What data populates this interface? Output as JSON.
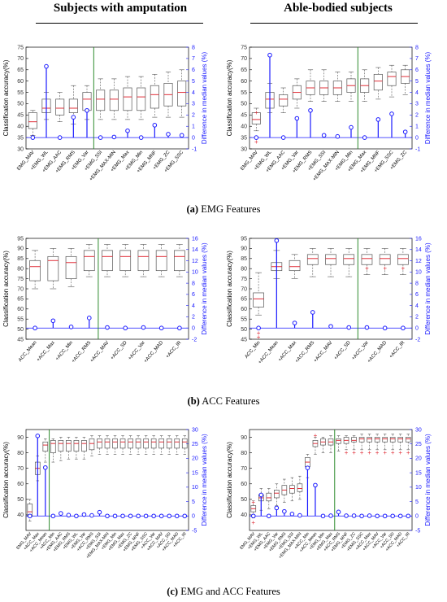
{
  "headers": {
    "left": "Subjects with amputation",
    "right": "Able-bodied subjects"
  },
  "captions": [
    {
      "letter": "(a)",
      "text": "EMG Features"
    },
    {
      "letter": "(b)",
      "text": "ACC Features"
    },
    {
      "letter": "(c)",
      "text": "EMG and ACC Features"
    }
  ],
  "colors": {
    "box": "#555555",
    "median": "#e0303a",
    "whisker": "#555555",
    "diff": "#1a1aff",
    "divider": "#2e8b2e"
  },
  "chart_data": [
    {
      "type": "box",
      "ylabel": "Classification accuracy(%)",
      "y2label": "Difference in median values (%)",
      "ylim": [
        30,
        75
      ],
      "yticks": [
        30,
        35,
        40,
        45,
        50,
        55,
        60,
        65,
        70,
        75
      ],
      "y2lim": [
        -1,
        8
      ],
      "y2ticks": [
        -1,
        0,
        1,
        2,
        3,
        4,
        5,
        6,
        7,
        8
      ],
      "divider_after": 4,
      "categories": [
        "EMG_MAV",
        "+EMG_WL",
        "+EMG_AAC",
        "+EMG_RMS",
        "+EMG_Var",
        "+EMG_SSI",
        "+EMG_MAX-MIN",
        "+EMG_Max",
        "+EMG_Min",
        "+EMG_MNF",
        "+EMG_ZC",
        "+EMG_SSC"
      ],
      "boxes": [
        [
          36,
          39,
          42,
          46,
          47
        ],
        [
          43,
          46,
          48,
          52,
          55
        ],
        [
          42,
          45,
          48,
          52,
          55
        ],
        [
          41,
          46,
          48,
          52,
          58
        ],
        [
          43,
          47,
          52,
          55,
          58
        ],
        [
          43,
          47,
          52,
          56,
          61
        ],
        [
          43,
          47,
          52,
          56,
          61
        ],
        [
          43,
          47,
          53,
          57,
          62
        ],
        [
          43,
          47,
          53,
          57,
          62
        ],
        [
          44,
          48,
          54,
          58,
          63
        ],
        [
          44,
          49,
          54,
          59,
          64
        ],
        [
          44,
          49,
          55,
          60,
          65
        ]
      ],
      "outliers": [],
      "diff": [
        0,
        6.3,
        0,
        1.8,
        2.4,
        0,
        0.05,
        0.6,
        0,
        1.1,
        0.3,
        0.2
      ]
    },
    {
      "type": "box",
      "ylabel": "Classification accuracy(%)",
      "y2label": "Difference in median values (%)",
      "ylim": [
        30,
        75
      ],
      "yticks": [
        30,
        35,
        40,
        45,
        50,
        55,
        60,
        65,
        70,
        75
      ],
      "y2lim": [
        -1,
        8
      ],
      "y2ticks": [
        -1,
        0,
        1,
        2,
        3,
        4,
        5,
        6,
        7,
        8
      ],
      "divider_after": 7,
      "categories": [
        "EMG_MAV",
        "+EMG_WL",
        "+EMG_AAC",
        "+EMG_Var",
        "+EMG_RMS",
        "+EMG_SSI",
        "+EMG_MAX-MIN",
        "+EMG_Min",
        "+EMG_Max",
        "+EMG_MNF",
        "+EMG_SSC",
        "+EMG_ZC"
      ],
      "boxes": [
        [
          38,
          41,
          43,
          46,
          48
        ],
        [
          46,
          48,
          52,
          55,
          59
        ],
        [
          46,
          49,
          52,
          54,
          57
        ],
        [
          48,
          52,
          55,
          58,
          61
        ],
        [
          51,
          54,
          57,
          60,
          65
        ],
        [
          51,
          54,
          57,
          60,
          65
        ],
        [
          51,
          54,
          57,
          60,
          64
        ],
        [
          51,
          55,
          58,
          61,
          64
        ],
        [
          51,
          55,
          58,
          61,
          65
        ],
        [
          52,
          56,
          60,
          63,
          66
        ],
        [
          53,
          58,
          62,
          64,
          67
        ],
        [
          54,
          59,
          62,
          65,
          67
        ]
      ],
      "outliers": [
        [
          0,
          46
        ],
        [
          0,
          33
        ]
      ],
      "diff": [
        0,
        7.3,
        0,
        1.7,
        2.4,
        0.2,
        0.1,
        0.9,
        0,
        1.6,
        2.1,
        0.5
      ]
    },
    {
      "type": "box",
      "ylabel": "Classification accuracy(%)",
      "y2label": "Difference in median values (%)",
      "ylim": [
        45,
        95
      ],
      "yticks": [
        45,
        50,
        55,
        60,
        65,
        70,
        75,
        80,
        85,
        90,
        95
      ],
      "y2lim": [
        -2,
        16
      ],
      "y2ticks": [
        -2,
        0,
        2,
        4,
        6,
        8,
        10,
        12,
        14,
        16
      ],
      "divider_after": 3,
      "categories": [
        "ACC_Mean",
        "+ACC_Max",
        "+ACC_Min",
        "+ACC_RMS",
        "+ACC_MAV",
        "+ACC_SD",
        "+ACC_Var",
        "+ACC_MAD",
        "+ACC_IR"
      ],
      "boxes": [
        [
          70,
          74,
          81,
          84,
          89
        ],
        [
          70,
          74,
          84,
          86,
          90
        ],
        [
          71,
          75,
          83,
          86,
          90
        ],
        [
          76,
          79,
          86,
          89,
          92
        ],
        [
          76,
          79,
          86,
          89,
          92
        ],
        [
          76,
          79,
          86,
          89,
          92
        ],
        [
          76,
          79,
          86,
          89,
          92
        ],
        [
          76,
          79,
          86,
          89,
          92
        ],
        [
          76,
          79,
          86,
          89,
          92
        ]
      ],
      "outliers": [],
      "diff": [
        0,
        1.3,
        0.2,
        1.8,
        0.1,
        0,
        0.1,
        0,
        0
      ]
    },
    {
      "type": "box",
      "ylabel": "Classification accuracy(%)",
      "y2label": "Difference in median values (%)",
      "ylim": [
        45,
        95
      ],
      "yticks": [
        45,
        50,
        55,
        60,
        65,
        70,
        75,
        80,
        85,
        90,
        95
      ],
      "y2lim": [
        -2,
        16
      ],
      "y2ticks": [
        -2,
        0,
        2,
        4,
        6,
        8,
        10,
        12,
        14,
        16
      ],
      "divider_after": 5,
      "categories": [
        "ACC_Min",
        "+ACC_Mean",
        "+ACC_Max",
        "+ACC_RMS",
        "+ACC_MAV",
        "+ACC_SD",
        "+ACC_Var",
        "+ACC_MAD",
        "+ACC_IR"
      ],
      "boxes": [
        [
          57,
          61,
          65,
          68,
          78
        ],
        [
          75,
          79,
          81,
          83,
          89
        ],
        [
          75,
          79,
          81,
          84,
          87
        ],
        [
          76,
          82,
          85,
          87,
          90
        ],
        [
          76,
          82,
          85,
          87,
          90
        ],
        [
          76,
          82,
          85,
          87,
          90
        ],
        [
          77,
          82,
          85,
          87,
          90
        ],
        [
          77,
          82,
          85,
          87,
          90
        ],
        [
          77,
          82,
          85,
          87,
          90
        ]
      ],
      "outliers": [
        [
          0,
          48
        ],
        [
          0,
          46
        ],
        [
          6,
          80
        ],
        [
          7,
          80
        ],
        [
          8,
          80
        ]
      ],
      "diff": [
        0,
        15.6,
        0.9,
        2.8,
        0.3,
        0.1,
        0.1,
        0,
        0
      ]
    },
    {
      "type": "box",
      "ylabel": "Classification accuracy(%)",
      "y2label": "Difference in median values (%)",
      "ylim": [
        30,
        95
      ],
      "yticks": [
        40,
        50,
        60,
        70,
        80,
        90
      ],
      "y2lim": [
        -5,
        30
      ],
      "y2ticks": [
        -5,
        0,
        5,
        10,
        15,
        20,
        25,
        30
      ],
      "divider_after": 2,
      "categories": [
        "EMG_MAV",
        "+ACC_Max",
        "+ACC_Mean",
        "+ACC_Min",
        "+EMG_AAC",
        "+EMG_RMS",
        "+EMG_WL",
        "+EMG_Var",
        "+ACC_RMS",
        "+EMG_SSI",
        "+EMG_MAX-MIN",
        "+EMG_Min",
        "+EMG_Max",
        "+EMG_ZC",
        "+EMG_MNF",
        "+EMG_SSC",
        "+ACC_Var",
        "+ACC_MAV",
        "+ACC_SD",
        "+ACC_MAD",
        "+ACC_IR"
      ],
      "boxes": [
        [
          36,
          39,
          42,
          47,
          50
        ],
        [
          62,
          66,
          70,
          74,
          78
        ],
        [
          74,
          81,
          85,
          87,
          89
        ],
        [
          74,
          80,
          86,
          88,
          89
        ],
        [
          75,
          81,
          86,
          88,
          90
        ],
        [
          76,
          81,
          86,
          88,
          90
        ],
        [
          76,
          81,
          86,
          88,
          90
        ],
        [
          76,
          81,
          86,
          88,
          90
        ],
        [
          78,
          82,
          86,
          89,
          91
        ],
        [
          79,
          83,
          87,
          89,
          91
        ],
        [
          79,
          83,
          87,
          89,
          91
        ],
        [
          79,
          83,
          87,
          89,
          91
        ],
        [
          79,
          83,
          87,
          89,
          91
        ],
        [
          79,
          83,
          87,
          89,
          91
        ],
        [
          79,
          83,
          87,
          89,
          91
        ],
        [
          79,
          83,
          87,
          89,
          91
        ],
        [
          79,
          83,
          87,
          89,
          91
        ],
        [
          79,
          83,
          87,
          89,
          91
        ],
        [
          79,
          83,
          87,
          89,
          91
        ],
        [
          79,
          83,
          87,
          89,
          91
        ],
        [
          79,
          83,
          87,
          89,
          91
        ]
      ],
      "outliers": [],
      "diff": [
        0,
        27.8,
        16.8,
        0,
        0.9,
        0.3,
        0,
        0.5,
        0.2,
        1.3,
        0,
        0,
        0,
        0,
        0,
        0,
        0,
        0,
        0,
        0,
        0
      ]
    },
    {
      "type": "box",
      "ylabel": "Classification accuracy(%)",
      "y2label": "Difference in median values (%)",
      "ylim": [
        30,
        95
      ],
      "yticks": [
        40,
        50,
        60,
        70,
        80,
        90
      ],
      "y2lim": [
        -5,
        30
      ],
      "y2ticks": [
        -5,
        0,
        5,
        10,
        15,
        20,
        25,
        30
      ],
      "divider_after": 10,
      "categories": [
        "EMG_MAV",
        "+EMG_WL",
        "+EMG_AAC",
        "+EMG_Var",
        "+EMG_RMS",
        "+EMG_SSI",
        "+EMG_MAX-MIN",
        "+ACC_Min",
        "+ACC_Mean",
        "+EMG_Min",
        "+EMG_Max",
        "+ACC_RMS",
        "+EMG_MNF",
        "+EMG_ZC",
        "+EMG_SSC",
        "+ACC_Max",
        "+ACC_MAV",
        "+ACC_Var",
        "+ACC_SD",
        "+ACC_MAD",
        "+ACC_IR"
      ],
      "boxes": [
        [
          38,
          42,
          44,
          46,
          49
        ],
        [
          43,
          49,
          51,
          53,
          57
        ],
        [
          44,
          49,
          51,
          54,
          57
        ],
        [
          46,
          51,
          54,
          56,
          60
        ],
        [
          48,
          53,
          56,
          59,
          63
        ],
        [
          49,
          54,
          57,
          59,
          64
        ],
        [
          50,
          55,
          57,
          60,
          65
        ],
        [
          64,
          71,
          74,
          77,
          79
        ],
        [
          79,
          84,
          86,
          88,
          90
        ],
        [
          80,
          85,
          87,
          89,
          90
        ],
        [
          80,
          85,
          87,
          89,
          91
        ],
        [
          81,
          86,
          88,
          89,
          91
        ],
        [
          82,
          86,
          88,
          90,
          91
        ],
        [
          82,
          87,
          88,
          90,
          91
        ],
        [
          82,
          87,
          89,
          90,
          92
        ],
        [
          82,
          87,
          89,
          90,
          92
        ],
        [
          82,
          87,
          89,
          90,
          92
        ],
        [
          82,
          87,
          89,
          90,
          92
        ],
        [
          82,
          87,
          89,
          90,
          92
        ],
        [
          82,
          87,
          89,
          90,
          92
        ],
        [
          82,
          87,
          89,
          90,
          92
        ]
      ],
      "outliers": [
        [
          0,
          48
        ],
        [
          0,
          35
        ],
        [
          8,
          91
        ],
        [
          12,
          80
        ],
        [
          13,
          80
        ],
        [
          14,
          80
        ],
        [
          15,
          80
        ],
        [
          16,
          80
        ],
        [
          17,
          80
        ],
        [
          18,
          80
        ],
        [
          19,
          80
        ],
        [
          20,
          80
        ]
      ],
      "diff": [
        0,
        7.3,
        0,
        2.8,
        1.6,
        0.7,
        0.2,
        16.7,
        10.7,
        0,
        0.1,
        1.4,
        0.1,
        0.1,
        0,
        0.1,
        0,
        0,
        0,
        0,
        0
      ]
    }
  ]
}
